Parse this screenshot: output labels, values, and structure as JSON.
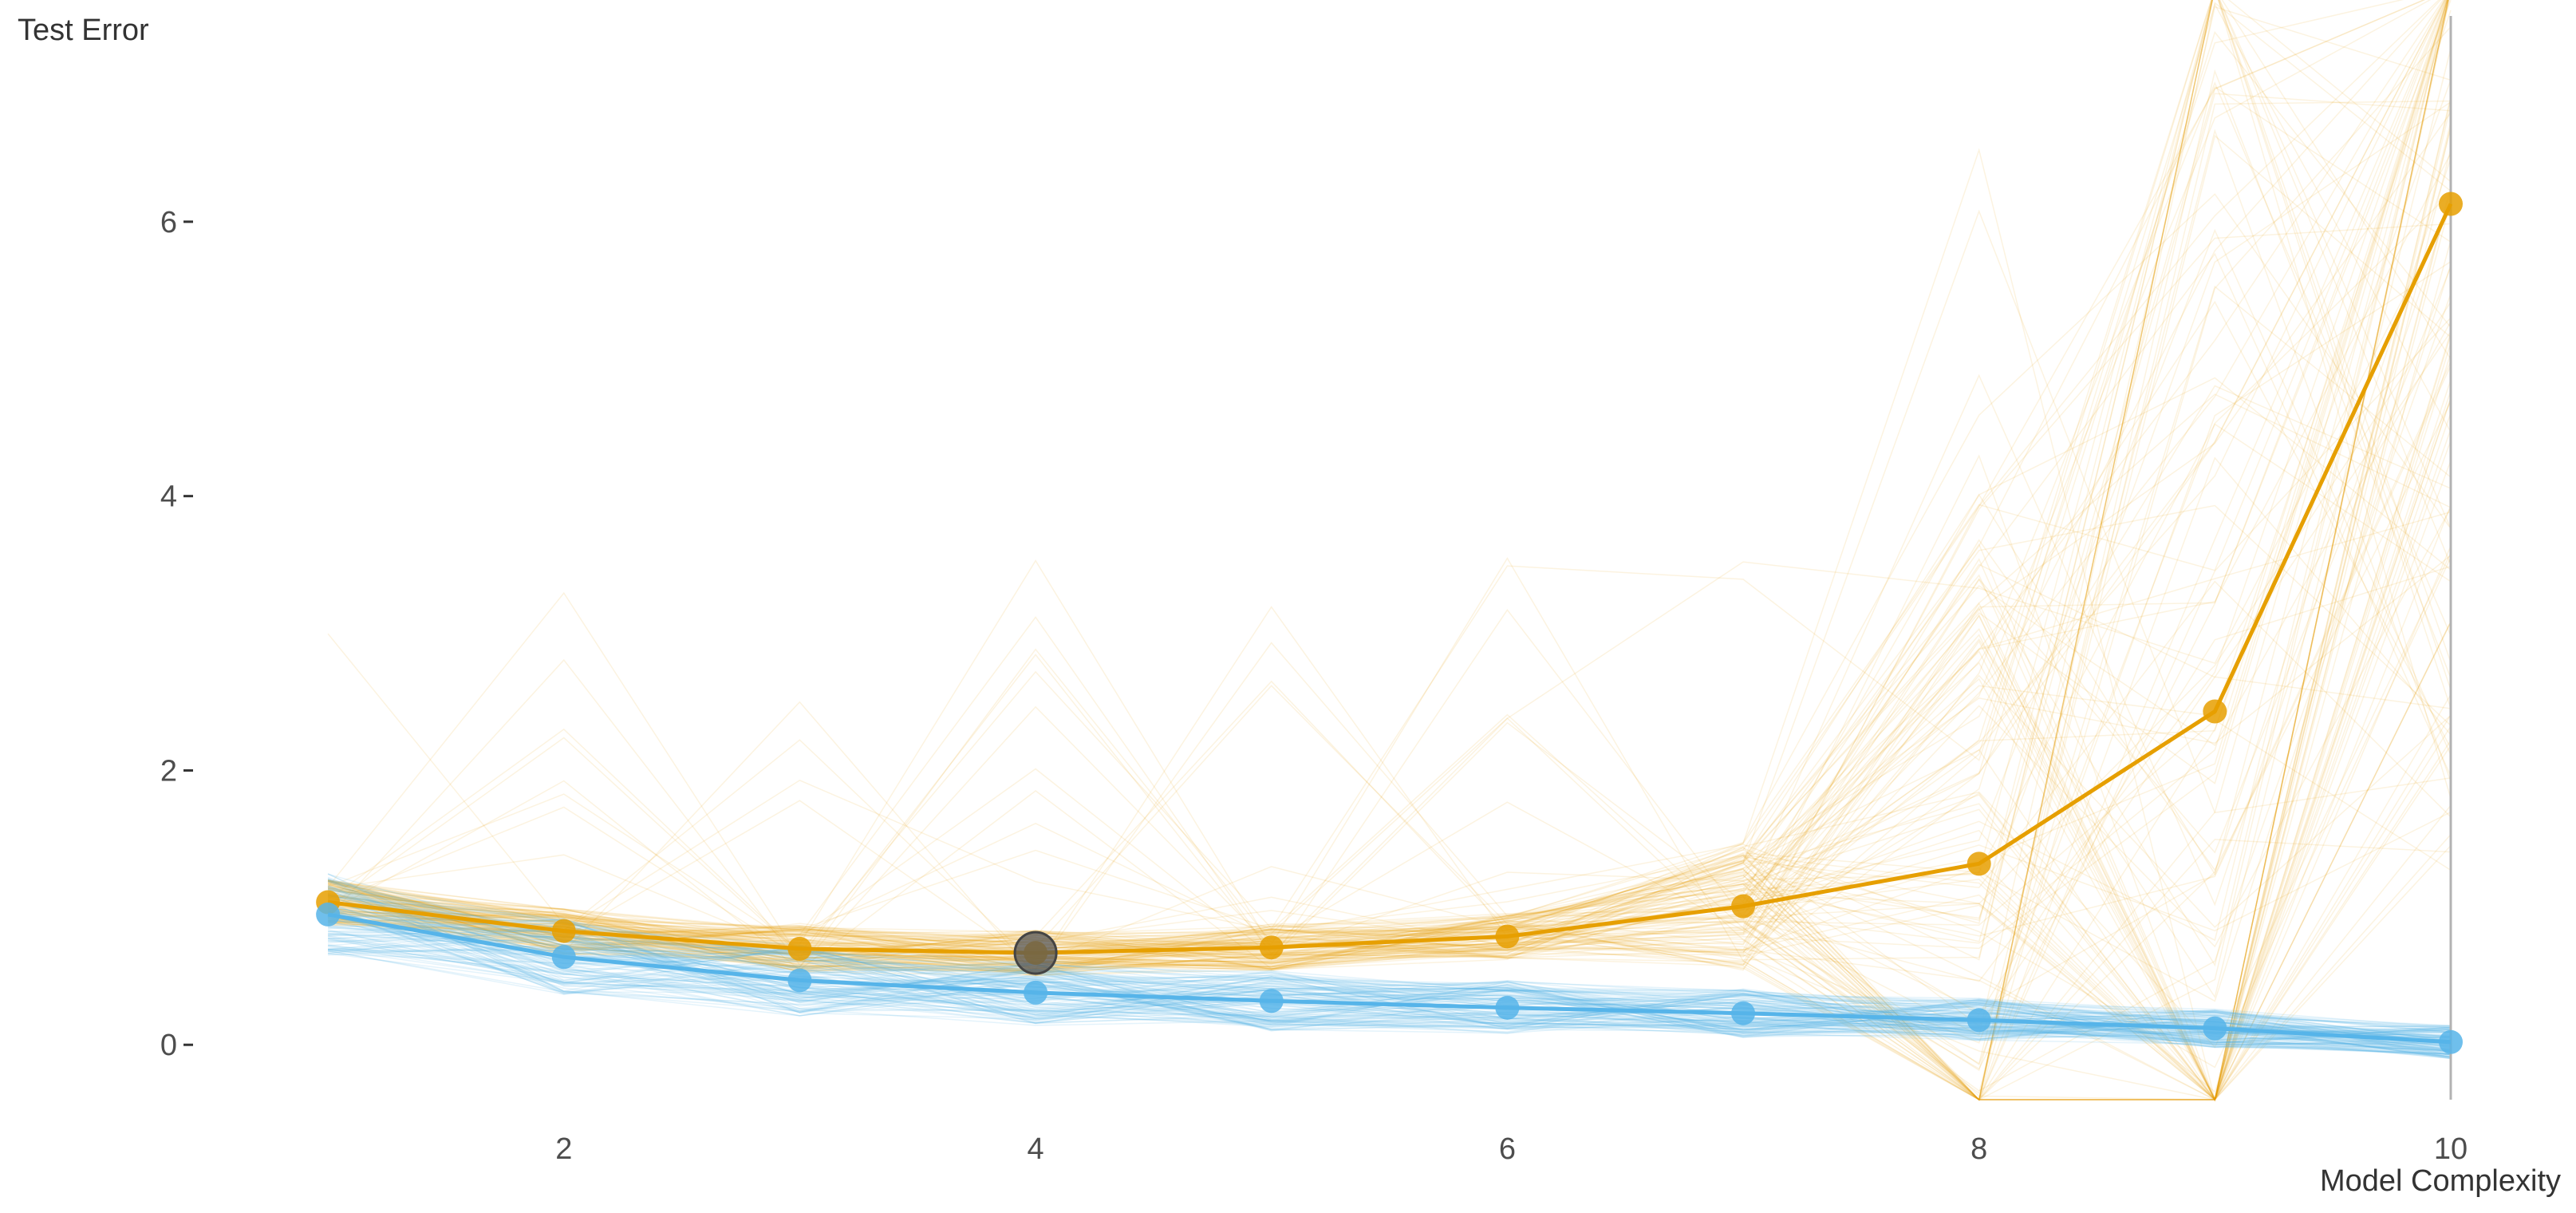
{
  "chart_data": {
    "type": "line",
    "title": "",
    "xlabel": "Model Complexity",
    "ylabel": "Test Error",
    "xlim": [
      0.8,
      10
    ],
    "ylim": [
      -0.4,
      7.5
    ],
    "x_ticks": [
      2,
      4,
      6,
      8,
      10
    ],
    "y_ticks": [
      0,
      2,
      4,
      6
    ],
    "grid": false,
    "x": [
      1,
      2,
      3,
      4,
      5,
      6,
      7,
      8,
      9,
      10
    ],
    "series": [
      {
        "color": "#E69F00",
        "values": [
          1.04,
          0.83,
          0.7,
          0.67,
          0.71,
          0.79,
          1.01,
          1.32,
          2.43,
          6.13
        ]
      },
      {
        "color": "#56B4E9",
        "values": [
          0.95,
          0.64,
          0.47,
          0.38,
          0.32,
          0.27,
          0.23,
          0.18,
          0.12,
          0.02
        ]
      }
    ],
    "highlight": {
      "x": 4,
      "y": 0.67,
      "color": "#555555"
    },
    "reference_line_x": 10
  }
}
